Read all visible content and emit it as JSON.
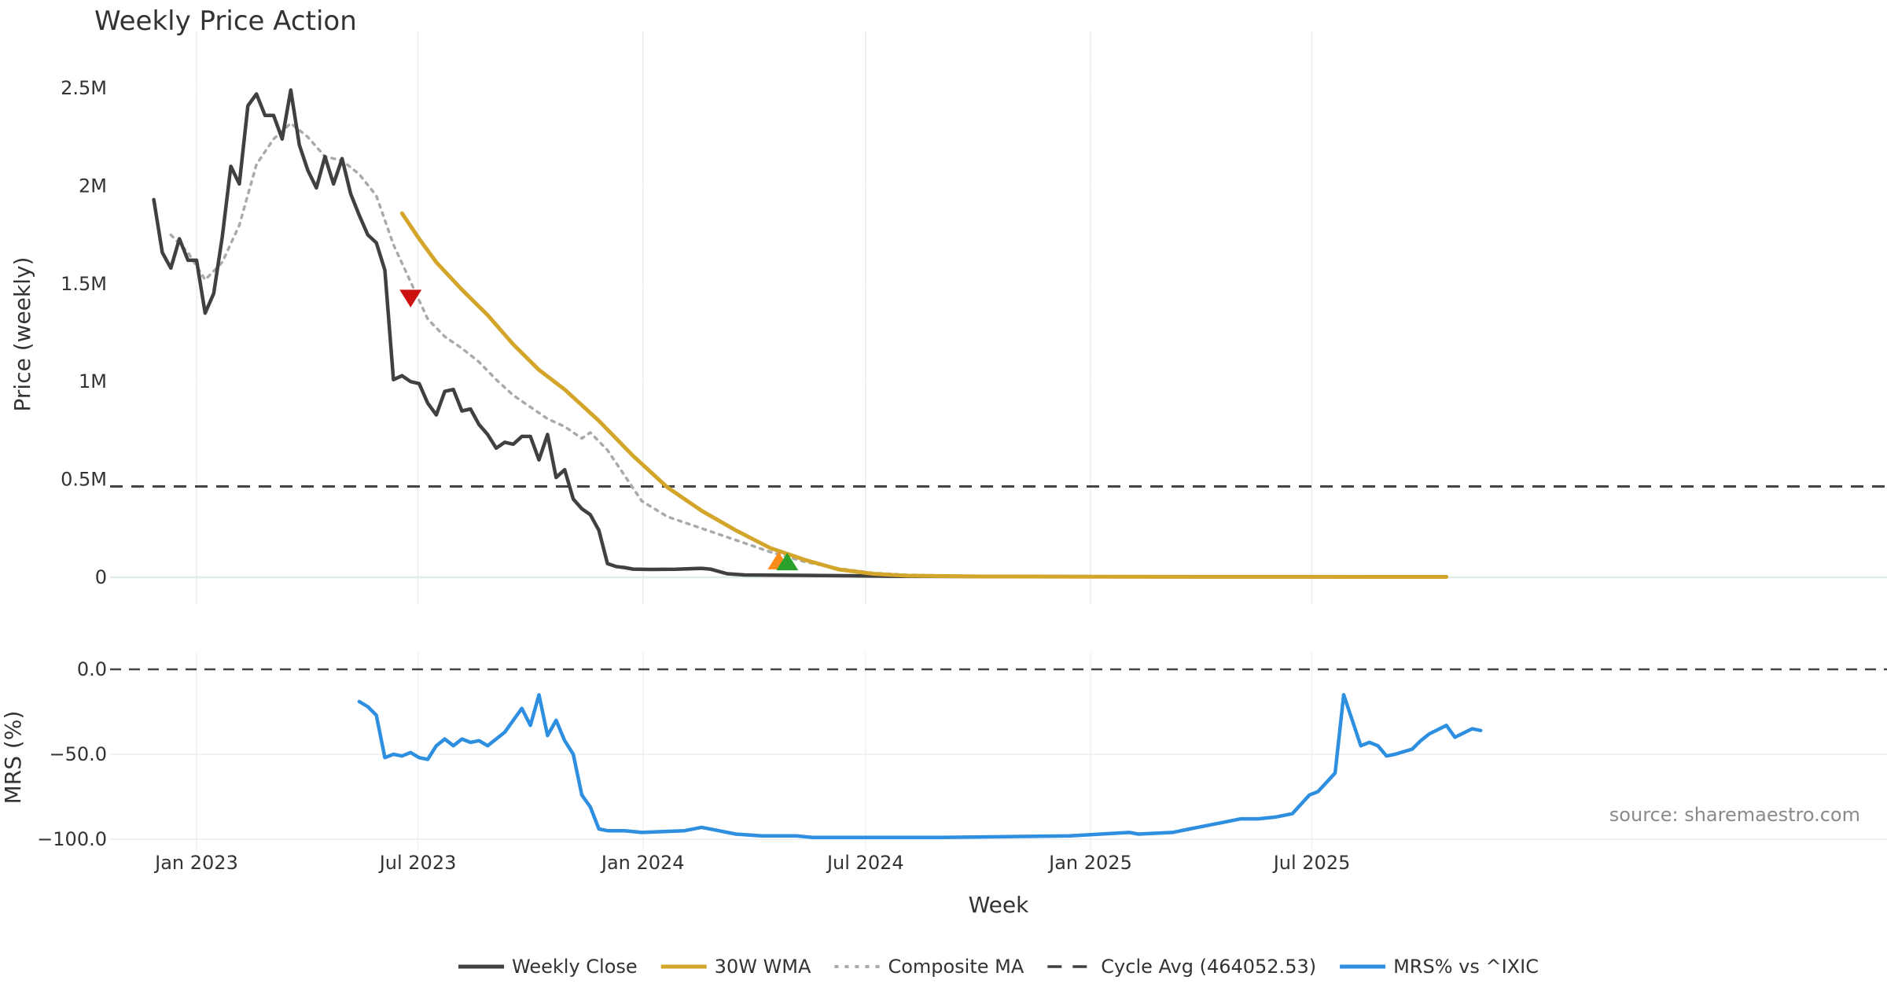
{
  "chart_data": [
    {
      "type": "line",
      "title": "Weekly Price Action",
      "xlabel": "",
      "ylabel": "Price (weekly)",
      "ylim": [
        -150000,
        2650000
      ],
      "yticks": [
        {
          "value": 0,
          "label": "0"
        },
        {
          "value": 500000,
          "label": "0.5M"
        },
        {
          "value": 1000000,
          "label": "1M"
        },
        {
          "value": 1500000,
          "label": "1.5M"
        },
        {
          "value": 2000000,
          "label": "2M"
        },
        {
          "value": 2500000,
          "label": "2.5M"
        }
      ],
      "cycle_avg": 464052.53,
      "series": [
        {
          "name": "Weekly Close",
          "color": "#404040",
          "style": "solid",
          "points": [
            [
              "2022-11-27",
              1930000
            ],
            [
              "2022-12-04",
              1660000
            ],
            [
              "2022-12-11",
              1580000
            ],
            [
              "2022-12-18",
              1730000
            ],
            [
              "2022-12-25",
              1620000
            ],
            [
              "2023-01-01",
              1620000
            ],
            [
              "2023-01-08",
              1350000
            ],
            [
              "2023-01-15",
              1450000
            ],
            [
              "2023-01-22",
              1740000
            ],
            [
              "2023-01-29",
              2100000
            ],
            [
              "2023-02-05",
              2010000
            ],
            [
              "2023-02-12",
              2410000
            ],
            [
              "2023-02-19",
              2470000
            ],
            [
              "2023-02-26",
              2360000
            ],
            [
              "2023-03-05",
              2360000
            ],
            [
              "2023-03-12",
              2240000
            ],
            [
              "2023-03-19",
              2490000
            ],
            [
              "2023-03-26",
              2210000
            ],
            [
              "2023-04-02",
              2080000
            ],
            [
              "2023-04-09",
              1990000
            ],
            [
              "2023-04-16",
              2150000
            ],
            [
              "2023-04-23",
              2010000
            ],
            [
              "2023-04-30",
              2140000
            ],
            [
              "2023-05-07",
              1960000
            ],
            [
              "2023-05-14",
              1850000
            ],
            [
              "2023-05-21",
              1750000
            ],
            [
              "2023-05-28",
              1710000
            ],
            [
              "2023-06-04",
              1570000
            ],
            [
              "2023-06-11",
              1010000
            ],
            [
              "2023-06-18",
              1030000
            ],
            [
              "2023-06-25",
              1000000
            ],
            [
              "2023-07-02",
              990000
            ],
            [
              "2023-07-09",
              890000
            ],
            [
              "2023-07-16",
              830000
            ],
            [
              "2023-07-23",
              950000
            ],
            [
              "2023-07-30",
              960000
            ],
            [
              "2023-08-06",
              850000
            ],
            [
              "2023-08-13",
              860000
            ],
            [
              "2023-08-20",
              780000
            ],
            [
              "2023-08-27",
              730000
            ],
            [
              "2023-09-03",
              660000
            ],
            [
              "2023-09-10",
              690000
            ],
            [
              "2023-09-17",
              680000
            ],
            [
              "2023-09-24",
              720000
            ],
            [
              "2023-10-01",
              720000
            ],
            [
              "2023-10-08",
              600000
            ],
            [
              "2023-10-15",
              730000
            ],
            [
              "2023-10-22",
              510000
            ],
            [
              "2023-10-29",
              550000
            ],
            [
              "2023-11-05",
              400000
            ],
            [
              "2023-11-12",
              350000
            ],
            [
              "2023-11-19",
              320000
            ],
            [
              "2023-11-26",
              240000
            ],
            [
              "2023-12-03",
              70000
            ],
            [
              "2023-12-10",
              55000
            ],
            [
              "2023-12-17",
              50000
            ],
            [
              "2023-12-24",
              42000
            ],
            [
              "2024-01-07",
              40000
            ],
            [
              "2024-01-28",
              41000
            ],
            [
              "2024-02-18",
              46000
            ],
            [
              "2024-02-25",
              42000
            ],
            [
              "2024-03-10",
              18000
            ],
            [
              "2024-03-24",
              12000
            ],
            [
              "2024-05-05",
              10000
            ],
            [
              "2024-06-16",
              8000
            ],
            [
              "2024-07-28",
              5000
            ],
            [
              "2024-10-06",
              4000
            ],
            [
              "2025-01-05",
              3000
            ],
            [
              "2025-05-04",
              2500
            ],
            [
              "2025-10-19",
              2000
            ]
          ]
        },
        {
          "name": "30W WMA",
          "color": "#d4a52b",
          "style": "solid",
          "points": [
            [
              "2023-06-18",
              1860000
            ],
            [
              "2023-07-02",
              1730000
            ],
            [
              "2023-07-16",
              1610000
            ],
            [
              "2023-08-06",
              1470000
            ],
            [
              "2023-08-27",
              1340000
            ],
            [
              "2023-09-17",
              1190000
            ],
            [
              "2023-10-08",
              1060000
            ],
            [
              "2023-10-29",
              960000
            ],
            [
              "2023-11-26",
              800000
            ],
            [
              "2023-12-24",
              620000
            ],
            [
              "2024-01-21",
              460000
            ],
            [
              "2024-02-18",
              340000
            ],
            [
              "2024-03-17",
              240000
            ],
            [
              "2024-04-14",
              150000
            ],
            [
              "2024-05-12",
              90000
            ],
            [
              "2024-06-09",
              40000
            ],
            [
              "2024-07-07",
              18000
            ],
            [
              "2024-08-04",
              8000
            ],
            [
              "2024-10-06",
              4000
            ],
            [
              "2025-01-05",
              3000
            ],
            [
              "2025-10-19",
              2000
            ]
          ]
        },
        {
          "name": "Composite MA",
          "color": "#aaaaaa",
          "style": "dotted",
          "points": [
            [
              "2022-12-11",
              1750000
            ],
            [
              "2022-12-25",
              1660000
            ],
            [
              "2023-01-08",
              1520000
            ],
            [
              "2023-01-22",
              1610000
            ],
            [
              "2023-02-05",
              1800000
            ],
            [
              "2023-02-19",
              2110000
            ],
            [
              "2023-03-05",
              2240000
            ],
            [
              "2023-03-19",
              2320000
            ],
            [
              "2023-04-02",
              2250000
            ],
            [
              "2023-04-16",
              2150000
            ],
            [
              "2023-04-30",
              2130000
            ],
            [
              "2023-05-14",
              2060000
            ],
            [
              "2023-05-28",
              1950000
            ],
            [
              "2023-06-11",
              1700000
            ],
            [
              "2023-06-25",
              1510000
            ],
            [
              "2023-07-09",
              1320000
            ],
            [
              "2023-07-23",
              1230000
            ],
            [
              "2023-08-06",
              1170000
            ],
            [
              "2023-08-20",
              1100000
            ],
            [
              "2023-09-03",
              1010000
            ],
            [
              "2023-09-17",
              930000
            ],
            [
              "2023-10-01",
              870000
            ],
            [
              "2023-10-15",
              810000
            ],
            [
              "2023-10-29",
              770000
            ],
            [
              "2023-11-12",
              710000
            ],
            [
              "2023-11-19",
              740000
            ],
            [
              "2023-12-03",
              650000
            ],
            [
              "2023-12-17",
              520000
            ],
            [
              "2023-12-31",
              390000
            ],
            [
              "2024-01-21",
              310000
            ],
            [
              "2024-02-18",
              250000
            ],
            [
              "2024-03-17",
              190000
            ],
            [
              "2024-04-14",
              130000
            ],
            [
              "2024-05-12",
              80000
            ],
            [
              "2024-06-09",
              45000
            ],
            [
              "2024-07-07",
              22000
            ],
            [
              "2024-08-04",
              12000
            ],
            [
              "2024-10-06",
              6000
            ],
            [
              "2025-10-19",
              3000
            ]
          ]
        }
      ],
      "markers": [
        {
          "type": "sell",
          "date": "2023-06-25",
          "value": 1430000,
          "color": "#cc1111",
          "shape": "triangle-down"
        },
        {
          "type": "buy",
          "date": "2024-04-21",
          "value": 80000,
          "color": "#ff8c1a",
          "shape": "triangle-up"
        },
        {
          "type": "buy",
          "date": "2024-04-28",
          "value": 75000,
          "color": "#2aa12a",
          "shape": "triangle-up"
        }
      ]
    },
    {
      "type": "line",
      "title": "",
      "xlabel": "Week",
      "ylabel": "MRS (%)",
      "ylim": [
        -103,
        3
      ],
      "yticks": [
        {
          "value": 0,
          "label": "0.0"
        },
        {
          "value": -50,
          "label": "−50.0"
        },
        {
          "value": -100,
          "label": "−100.0"
        }
      ],
      "zero_line": 0,
      "series": [
        {
          "name": "MRS% vs ^IXIC",
          "color": "#2e8ee0",
          "style": "solid",
          "points": [
            [
              "2023-05-14",
              -19
            ],
            [
              "2023-05-21",
              -22
            ],
            [
              "2023-05-28",
              -27
            ],
            [
              "2023-06-04",
              -52
            ],
            [
              "2023-06-11",
              -50
            ],
            [
              "2023-06-18",
              -51
            ],
            [
              "2023-06-25",
              -49
            ],
            [
              "2023-07-02",
              -52
            ],
            [
              "2023-07-09",
              -53
            ],
            [
              "2023-07-16",
              -45
            ],
            [
              "2023-07-23",
              -41
            ],
            [
              "2023-07-30",
              -45
            ],
            [
              "2023-08-06",
              -41
            ],
            [
              "2023-08-13",
              -43
            ],
            [
              "2023-08-20",
              -42
            ],
            [
              "2023-08-27",
              -45
            ],
            [
              "2023-09-03",
              -41
            ],
            [
              "2023-09-10",
              -37
            ],
            [
              "2023-09-17",
              -30
            ],
            [
              "2023-09-24",
              -23
            ],
            [
              "2023-10-01",
              -33
            ],
            [
              "2023-10-08",
              -15
            ],
            [
              "2023-10-15",
              -39
            ],
            [
              "2023-10-22",
              -30
            ],
            [
              "2023-10-29",
              -42
            ],
            [
              "2023-11-05",
              -50
            ],
            [
              "2023-11-12",
              -74
            ],
            [
              "2023-11-19",
              -81
            ],
            [
              "2023-11-26",
              -94
            ],
            [
              "2023-12-03",
              -95
            ],
            [
              "2023-12-17",
              -95
            ],
            [
              "2023-12-31",
              -96
            ],
            [
              "2024-02-04",
              -95
            ],
            [
              "2024-02-18",
              -93
            ],
            [
              "2024-03-03",
              -95
            ],
            [
              "2024-03-17",
              -97
            ],
            [
              "2024-04-07",
              -98
            ],
            [
              "2024-05-05",
              -98
            ],
            [
              "2024-05-19",
              -99
            ],
            [
              "2024-07-07",
              -99
            ],
            [
              "2024-09-01",
              -99
            ],
            [
              "2024-12-15",
              -98
            ],
            [
              "2025-02-02",
              -96
            ],
            [
              "2025-02-09",
              -97
            ],
            [
              "2025-03-09",
              -96
            ],
            [
              "2025-03-23",
              -94
            ],
            [
              "2025-04-06",
              -92
            ],
            [
              "2025-04-20",
              -90
            ],
            [
              "2025-05-04",
              -88
            ],
            [
              "2025-05-18",
              -88
            ],
            [
              "2025-06-01",
              -87
            ],
            [
              "2025-06-15",
              -85
            ],
            [
              "2025-06-29",
              -74
            ],
            [
              "2025-07-06",
              -72
            ],
            [
              "2025-07-20",
              -61
            ],
            [
              "2025-07-27",
              -15
            ],
            [
              "2025-08-03",
              -30
            ],
            [
              "2025-08-10",
              -45
            ],
            [
              "2025-08-17",
              -43
            ],
            [
              "2025-08-24",
              -45
            ],
            [
              "2025-08-31",
              -51
            ],
            [
              "2025-09-07",
              -50
            ],
            [
              "2025-09-21",
              -47
            ],
            [
              "2025-09-28",
              -42
            ],
            [
              "2025-10-05",
              -38
            ],
            [
              "2025-10-19",
              -33
            ],
            [
              "2025-10-26",
              -40
            ],
            [
              "2025-11-09",
              -35
            ],
            [
              "2025-11-16",
              -36
            ]
          ]
        }
      ]
    }
  ],
  "x_axis": {
    "range": [
      "2022-11-27",
      "2025-11-16"
    ],
    "ticks": [
      {
        "date": "2023-01-01",
        "label": "Jan 2023"
      },
      {
        "date": "2023-07-01",
        "label": "Jul 2023"
      },
      {
        "date": "2024-01-01",
        "label": "Jan 2024"
      },
      {
        "date": "2024-07-01",
        "label": "Jul 2024"
      },
      {
        "date": "2025-01-01",
        "label": "Jan 2025"
      },
      {
        "date": "2025-07-01",
        "label": "Jul 2025"
      }
    ]
  },
  "legend": {
    "placement": "bottom-center",
    "items": [
      {
        "label": "Weekly Close",
        "color": "#404040",
        "style": "solid"
      },
      {
        "label": "30W WMA",
        "color": "#d4a52b",
        "style": "solid"
      },
      {
        "label": "Composite MA",
        "color": "#aaaaaa",
        "style": "dotted"
      },
      {
        "label": "Cycle Avg (464052.53)",
        "color": "#404040",
        "style": "dashed"
      },
      {
        "label": "MRS% vs ^IXIC",
        "color": "#2e8ee0",
        "style": "solid"
      }
    ]
  },
  "source_text": "source: sharemaestro.com"
}
